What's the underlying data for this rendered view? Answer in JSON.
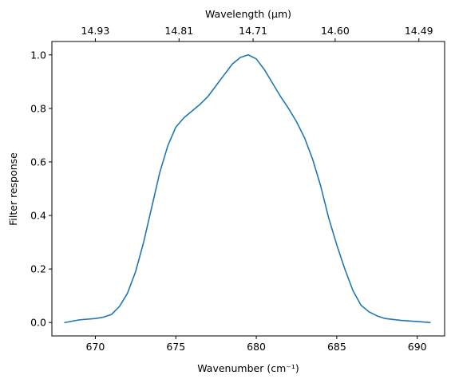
{
  "chart_data": {
    "type": "line",
    "title": "",
    "xlabel": "Wavenumber (cm⁻¹)",
    "ylabel": "Filter response",
    "top_xlabel": "Wavelength (μm)",
    "xlim": [
      667.3,
      691.7
    ],
    "ylim": [
      -0.05,
      1.05
    ],
    "x_ticks": [
      670,
      675,
      680,
      685,
      690
    ],
    "x_tick_labels": [
      "670",
      "675",
      "680",
      "685",
      "690"
    ],
    "y_ticks": [
      0.0,
      0.2,
      0.4,
      0.6,
      0.8,
      1.0
    ],
    "y_tick_labels": [
      "0.0",
      "0.2",
      "0.4",
      "0.6",
      "0.8",
      "1.0"
    ],
    "top_ticks": [
      670.0,
      675.2,
      679.8,
      684.9,
      690.1
    ],
    "top_tick_labels": [
      "14.93",
      "14.81",
      "14.71",
      "14.60",
      "14.49"
    ],
    "grid": false,
    "line_color": "#1f77b4",
    "series": [
      {
        "x": [
          668.1,
          669.0,
          670.0,
          670.5,
          671.0,
          671.5,
          672.0,
          672.5,
          673.0,
          673.5,
          674.0,
          674.5,
          675.0,
          675.5,
          676.0,
          676.5,
          677.0,
          677.5,
          678.0,
          678.5,
          679.0,
          679.5,
          680.0,
          680.5,
          681.0,
          681.5,
          682.0,
          682.5,
          683.0,
          683.5,
          684.0,
          684.5,
          685.0,
          685.5,
          686.0,
          686.5,
          687.0,
          687.5,
          688.0,
          689.0,
          690.0,
          690.8
        ],
        "y": [
          0.0,
          0.01,
          0.015,
          0.02,
          0.03,
          0.06,
          0.11,
          0.19,
          0.3,
          0.43,
          0.56,
          0.66,
          0.73,
          0.765,
          0.79,
          0.815,
          0.845,
          0.885,
          0.925,
          0.965,
          0.99,
          1.0,
          0.985,
          0.945,
          0.895,
          0.845,
          0.8,
          0.75,
          0.69,
          0.61,
          0.51,
          0.39,
          0.29,
          0.2,
          0.12,
          0.065,
          0.04,
          0.025,
          0.015,
          0.008,
          0.004,
          0.0
        ]
      }
    ]
  }
}
